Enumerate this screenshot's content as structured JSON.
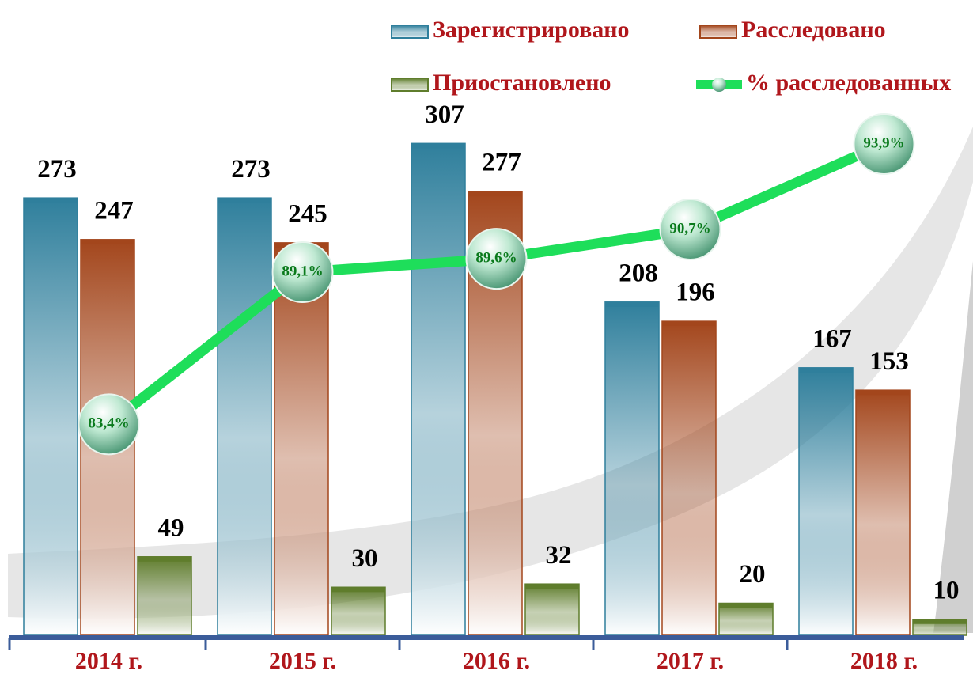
{
  "chart_data": {
    "type": "bar",
    "categories": [
      "2014 г.",
      "2015 г.",
      "2016 г.",
      "2017 г.",
      "2018 г."
    ],
    "series": [
      {
        "name": "Зарегистрировано",
        "color": "#2f7f9c",
        "values": [
          273,
          273,
          307,
          208,
          167
        ]
      },
      {
        "name": "Расследовано",
        "color": "#a3461c",
        "values": [
          247,
          245,
          277,
          196,
          153
        ]
      },
      {
        "name": "Приостановлено",
        "color": "#5f7d2c",
        "values": [
          49,
          30,
          32,
          20,
          10
        ]
      },
      {
        "name": "% расследованных",
        "color": "#1ede5a",
        "type": "line",
        "axis": "y2",
        "values": [
          83.4,
          89.1,
          89.6,
          90.7,
          93.9
        ],
        "value_labels": [
          "83,4%",
          "89,1%",
          "89,6%",
          "90,7%",
          "93,9%"
        ]
      }
    ],
    "ylim": [
      0,
      320
    ],
    "y2lim": [
      75.5,
      94.7
    ]
  }
}
